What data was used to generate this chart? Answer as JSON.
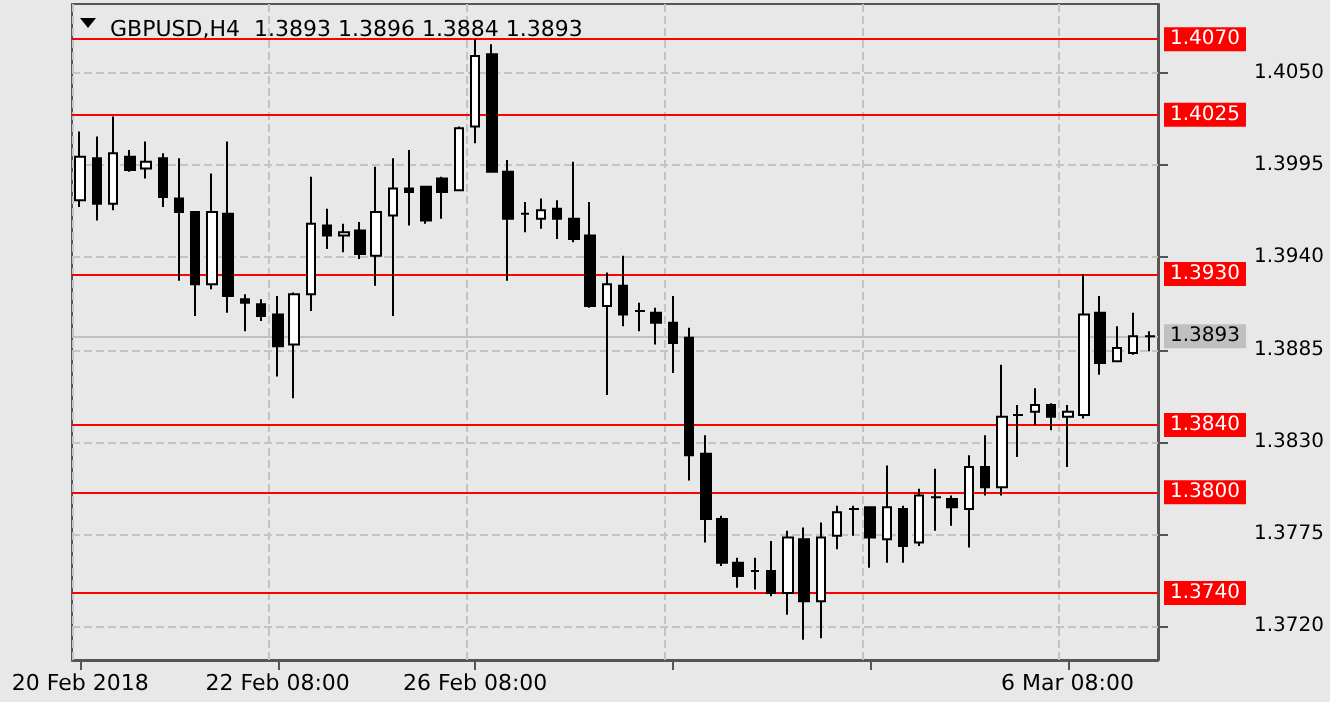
{
  "chart_data": {
    "type": "candlestick",
    "title": "GBPUSD,H4  1.3893 1.3896 1.3884 1.3893",
    "categories": [
      "20 Feb 2018",
      null,
      null,
      null,
      null,
      null,
      null,
      null,
      null,
      null,
      null,
      null,
      "22 Feb 08:00",
      null,
      null,
      null,
      null,
      null,
      null,
      null,
      null,
      null,
      null,
      null,
      "26 Feb 08:00",
      null,
      null,
      null,
      null,
      null,
      null,
      null,
      null,
      null,
      null,
      null,
      null,
      null,
      null,
      null,
      null,
      null,
      null,
      null,
      null,
      null,
      null,
      null,
      null,
      null,
      null,
      null,
      null,
      null,
      null,
      null,
      null,
      null,
      null,
      null,
      "6 Mar 08:00",
      null,
      null,
      null,
      null,
      null
    ],
    "series": [
      {
        "color": "#000000",
        "ohlc": [
          [
            1.3974,
            1.4015,
            1.397,
            1.4
          ],
          [
            1.3999,
            1.4012,
            1.3962,
            1.3972
          ],
          [
            1.3972,
            1.4024,
            1.3968,
            1.4002
          ],
          [
            1.4,
            1.4004,
            1.3991,
            1.3992
          ],
          [
            1.3993,
            1.4009,
            1.3987,
            1.3997
          ],
          [
            1.3999,
            1.4002,
            1.397,
            1.3976
          ],
          [
            1.3975,
            1.3999,
            1.3926,
            1.3967
          ],
          [
            1.3967,
            1.3967,
            1.3905,
            1.3924
          ],
          [
            1.3924,
            1.399,
            1.3921,
            1.3967
          ],
          [
            1.3966,
            1.4009,
            1.3907,
            1.3917
          ],
          [
            1.3915,
            1.3918,
            1.3896,
            1.3913
          ],
          [
            1.3912,
            1.3915,
            1.3902,
            1.3905
          ],
          [
            1.3906,
            1.3917,
            1.3869,
            1.3887
          ],
          [
            1.3888,
            1.3919,
            1.3856,
            1.3918
          ],
          [
            1.3918,
            1.3988,
            1.3908,
            1.396
          ],
          [
            1.3959,
            1.3969,
            1.3945,
            1.3953
          ],
          [
            1.3953,
            1.396,
            1.3943,
            1.3955
          ],
          [
            1.3956,
            1.3961,
            1.3939,
            1.3942
          ],
          [
            1.3941,
            1.3994,
            1.3923,
            1.3967
          ],
          [
            1.3965,
            1.3999,
            1.3905,
            1.3981
          ],
          [
            1.3981,
            1.4004,
            1.3959,
            1.3979
          ],
          [
            1.3982,
            1.3982,
            1.396,
            1.3962
          ],
          [
            1.3987,
            1.3988,
            1.3963,
            1.3979
          ],
          [
            1.398,
            1.4018,
            1.398,
            1.4017
          ],
          [
            1.4018,
            1.407,
            1.4008,
            1.406
          ],
          [
            1.4061,
            1.4067,
            1.3991,
            1.3991
          ],
          [
            1.3991,
            1.3998,
            1.3926,
            1.3963
          ],
          [
            1.3966,
            1.3973,
            1.3955,
            1.3966
          ],
          [
            1.3963,
            1.3975,
            1.3957,
            1.3968
          ],
          [
            1.3969,
            1.3974,
            1.3951,
            1.3963
          ],
          [
            1.3963,
            1.3997,
            1.3949,
            1.3951
          ],
          [
            1.3953,
            1.3973,
            1.391,
            1.3911
          ],
          [
            1.3911,
            1.3931,
            1.3858,
            1.3924
          ],
          [
            1.3923,
            1.3941,
            1.3899,
            1.3906
          ],
          [
            1.3908,
            1.3913,
            1.3896,
            1.3908
          ],
          [
            1.3907,
            1.391,
            1.3888,
            1.3901
          ],
          [
            1.3901,
            1.3917,
            1.3871,
            1.3889
          ],
          [
            1.3892,
            1.3898,
            1.3807,
            1.3822
          ],
          [
            1.3823,
            1.3834,
            1.377,
            1.3784
          ],
          [
            1.3784,
            1.3786,
            1.3756,
            1.3758
          ],
          [
            1.3758,
            1.3761,
            1.3743,
            1.375
          ],
          [
            1.3753,
            1.3761,
            1.3742,
            1.3753
          ],
          [
            1.3753,
            1.3771,
            1.3738,
            1.374
          ],
          [
            1.374,
            1.3777,
            1.3727,
            1.3773
          ],
          [
            1.3772,
            1.3779,
            1.3712,
            1.3735
          ],
          [
            1.3735,
            1.3782,
            1.3713,
            1.3773
          ],
          [
            1.3774,
            1.3792,
            1.3766,
            1.3788
          ],
          [
            1.379,
            1.3792,
            1.3774,
            1.379
          ],
          [
            1.3791,
            1.3791,
            1.3755,
            1.3773
          ],
          [
            1.3772,
            1.3816,
            1.3758,
            1.3791
          ],
          [
            1.379,
            1.3792,
            1.3758,
            1.3768
          ],
          [
            1.377,
            1.3802,
            1.3768,
            1.3798
          ],
          [
            1.3797,
            1.3814,
            1.3777,
            1.3797
          ],
          [
            1.3796,
            1.3798,
            1.378,
            1.3791
          ],
          [
            1.379,
            1.3822,
            1.3767,
            1.3815
          ],
          [
            1.3815,
            1.3834,
            1.3798,
            1.3803
          ],
          [
            1.3803,
            1.3876,
            1.3798,
            1.3845
          ],
          [
            1.3846,
            1.3852,
            1.3821,
            1.3846
          ],
          [
            1.3848,
            1.3862,
            1.384,
            1.3852
          ],
          [
            1.3852,
            1.3853,
            1.3837,
            1.3845
          ],
          [
            1.3845,
            1.3852,
            1.3815,
            1.3848
          ],
          [
            1.3846,
            1.393,
            1.3844,
            1.3906
          ],
          [
            1.3907,
            1.3917,
            1.387,
            1.3877
          ],
          [
            1.3878,
            1.3899,
            1.3878,
            1.3886
          ],
          [
            1.3883,
            1.3907,
            1.3882,
            1.3893
          ],
          [
            1.3893,
            1.3896,
            1.3884,
            1.3893
          ]
        ]
      }
    ],
    "ylim": [
      1.37,
      1.4091
    ],
    "yticks": [
      {
        "value": 1.405,
        "label": "1.4050"
      },
      {
        "value": 1.3995,
        "label": "1.3995"
      },
      {
        "value": 1.394,
        "label": "1.3940"
      },
      {
        "value": 1.3885,
        "label": "1.3885"
      },
      {
        "value": 1.383,
        "label": "1.3830"
      },
      {
        "value": 1.3775,
        "label": "1.3775"
      },
      {
        "value": 1.372,
        "label": "1.3720"
      }
    ],
    "ref_lines": [
      {
        "axis": "y",
        "value": 1.407,
        "label": "1.4070",
        "color": "#ff0000"
      },
      {
        "axis": "y",
        "value": 1.4025,
        "label": "1.4025",
        "color": "#ff0000"
      },
      {
        "axis": "y",
        "value": 1.393,
        "label": "1.3930",
        "color": "#ff0000"
      },
      {
        "axis": "y",
        "value": 1.3893,
        "label": "1.3893",
        "color": "#c0c0c0"
      },
      {
        "axis": "y",
        "value": 1.384,
        "label": "1.3840",
        "color": "#ff0000"
      },
      {
        "axis": "y",
        "value": 1.38,
        "label": "1.3800",
        "color": "#ff0000"
      },
      {
        "axis": "y",
        "value": 1.374,
        "label": "1.3740",
        "color": "#ff0000"
      }
    ],
    "grid": true
  }
}
